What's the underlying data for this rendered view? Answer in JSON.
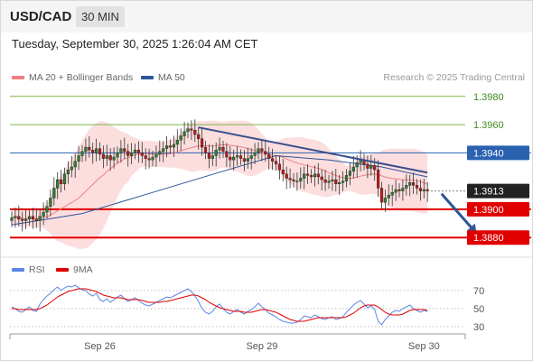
{
  "header": {
    "symbol": "USD/CAD",
    "timeframe": "30 MIN",
    "datetime": "Tuesday, September 30, 2025 1:26:04 AM CET"
  },
  "legend": {
    "ma20_label": "MA 20 + Bollinger Bands",
    "ma50_label": "MA 50",
    "credit": "Research © 2025 Trading Central",
    "rsi_label": "RSI",
    "rsi_ma_label": "9MA"
  },
  "colors": {
    "ma20": "#f08080",
    "band_fill": "#fbd6d6",
    "ma50": "#2f5597",
    "resistance_line": "#7ab648",
    "pivot_line": "#2a62b0",
    "support_line": "#e00000",
    "current_price_bg": "#222222",
    "rsi": "#5b86e5",
    "rsi_ma": "#e00000"
  },
  "chart_data": {
    "type": "candlestick",
    "ylim": [
      1.3868,
      1.3992
    ],
    "price_levels": [
      {
        "value": 1.398,
        "label": "1.3980",
        "kind": "resistance"
      },
      {
        "value": 1.396,
        "label": "1.3960",
        "kind": "resistance"
      },
      {
        "value": 1.394,
        "label": "1.3940",
        "kind": "pivot"
      },
      {
        "value": 1.3913,
        "label": "1.3913",
        "kind": "current"
      },
      {
        "value": 1.39,
        "label": "1.3900",
        "kind": "support"
      },
      {
        "value": 1.388,
        "label": "1.3880",
        "kind": "support"
      }
    ],
    "x_ticks": [
      {
        "bar": 25,
        "label": "Sep 26"
      },
      {
        "bar": 71,
        "label": "Sep 29"
      },
      {
        "bar": 117,
        "label": "Sep 30"
      }
    ],
    "ma50_curve": [
      [
        0,
        1.3889
      ],
      [
        20,
        1.3897
      ],
      [
        40,
        1.3912
      ],
      [
        60,
        1.3927
      ],
      [
        75,
        1.3938
      ],
      [
        90,
        1.3935
      ],
      [
        105,
        1.393
      ],
      [
        118,
        1.3923
      ]
    ],
    "downtrend_line": {
      "from": [
        53,
        1.3958
      ],
      "to": [
        118,
        1.3926
      ]
    },
    "forecast_arrow": {
      "from": [
        122,
        1.3911
      ],
      "to": [
        132,
        1.3881
      ]
    },
    "rsi_panel": {
      "ylim": [
        20,
        80
      ],
      "ticks": [
        70,
        50,
        30
      ]
    },
    "candles_note": "USD/CAD 30-minute candles; close values per bar",
    "closes": [
      1.3894,
      1.3895,
      1.3893,
      1.3892,
      1.3893,
      1.3895,
      1.3893,
      1.3892,
      1.3895,
      1.3898,
      1.3902,
      1.3908,
      1.3915,
      1.3921,
      1.3918,
      1.3925,
      1.3928,
      1.393,
      1.3934,
      1.3938,
      1.3941,
      1.3944,
      1.3942,
      1.394,
      1.3943,
      1.3939,
      1.3936,
      1.3938,
      1.3935,
      1.3937,
      1.394,
      1.3943,
      1.3941,
      1.3938,
      1.394,
      1.3942,
      1.394,
      1.3938,
      1.3936,
      1.3935,
      1.3937,
      1.3939,
      1.3941,
      1.3943,
      1.3945,
      1.3944,
      1.3946,
      1.3949,
      1.3952,
      1.3955,
      1.3957,
      1.3956,
      1.3953,
      1.395,
      1.3944,
      1.394,
      1.3936,
      1.3938,
      1.3942,
      1.3944,
      1.3941,
      1.3937,
      1.3935,
      1.3937,
      1.3938,
      1.3936,
      1.3934,
      1.3936,
      1.3938,
      1.394,
      1.3943,
      1.3941,
      1.3939,
      1.3936,
      1.3934,
      1.3932,
      1.3928,
      1.3925,
      1.3922,
      1.3921,
      1.392,
      1.392,
      1.3922,
      1.3925,
      1.3924,
      1.3923,
      1.3925,
      1.3923,
      1.3921,
      1.3919,
      1.392,
      1.3921,
      1.3918,
      1.3919,
      1.392,
      1.3924,
      1.3927,
      1.393,
      1.3933,
      1.3935,
      1.3932,
      1.3929,
      1.3931,
      1.3928,
      1.3915,
      1.3905,
      1.3908,
      1.391,
      1.3912,
      1.3914,
      1.3913,
      1.3915,
      1.3917,
      1.3919,
      1.3917,
      1.3915,
      1.3913,
      1.3914,
      1.3913
    ],
    "rsi": [
      52,
      50,
      47,
      46,
      49,
      52,
      48,
      47,
      55,
      60,
      64,
      67,
      71,
      74,
      70,
      73,
      75,
      74,
      76,
      73,
      71,
      70,
      66,
      64,
      67,
      60,
      58,
      61,
      57,
      60,
      63,
      65,
      61,
      58,
      60,
      62,
      59,
      56,
      54,
      53,
      55,
      57,
      59,
      61,
      63,
      62,
      64,
      66,
      68,
      70,
      72,
      69,
      64,
      58,
      50,
      46,
      44,
      47,
      52,
      55,
      50,
      46,
      44,
      47,
      49,
      46,
      44,
      47,
      49,
      52,
      56,
      52,
      49,
      45,
      43,
      41,
      38,
      36,
      35,
      34,
      34,
      35,
      38,
      42,
      41,
      40,
      43,
      41,
      39,
      38,
      40,
      41,
      38,
      39,
      41,
      46,
      50,
      54,
      57,
      59,
      55,
      51,
      53,
      49,
      36,
      32,
      38,
      42,
      46,
      48,
      47,
      50,
      52,
      54,
      50,
      48,
      46,
      48,
      47
    ],
    "rsi_ma": [
      50,
      50,
      49,
      49,
      49,
      49,
      49,
      49,
      50,
      52,
      54,
      57,
      60,
      63,
      65,
      67,
      69,
      70,
      71,
      72,
      72,
      72,
      71,
      70,
      69,
      67,
      65,
      64,
      63,
      62,
      62,
      62,
      61,
      60,
      60,
      60,
      60,
      59,
      58,
      57,
      57,
      57,
      57,
      58,
      58,
      59,
      60,
      61,
      62,
      63,
      64,
      65,
      65,
      64,
      62,
      60,
      57,
      55,
      53,
      51,
      50,
      49,
      48,
      47,
      47,
      47,
      46,
      46,
      46,
      47,
      48,
      49,
      49,
      48,
      47,
      46,
      44,
      42,
      40,
      38,
      37,
      36,
      36,
      36,
      37,
      38,
      39,
      40,
      40,
      40,
      40,
      40,
      40,
      40,
      40,
      41,
      43,
      45,
      48,
      51,
      53,
      54,
      54,
      54,
      52,
      49,
      46,
      44,
      43,
      43,
      43,
      44,
      46,
      48,
      49,
      49,
      49,
      49,
      48
    ]
  }
}
